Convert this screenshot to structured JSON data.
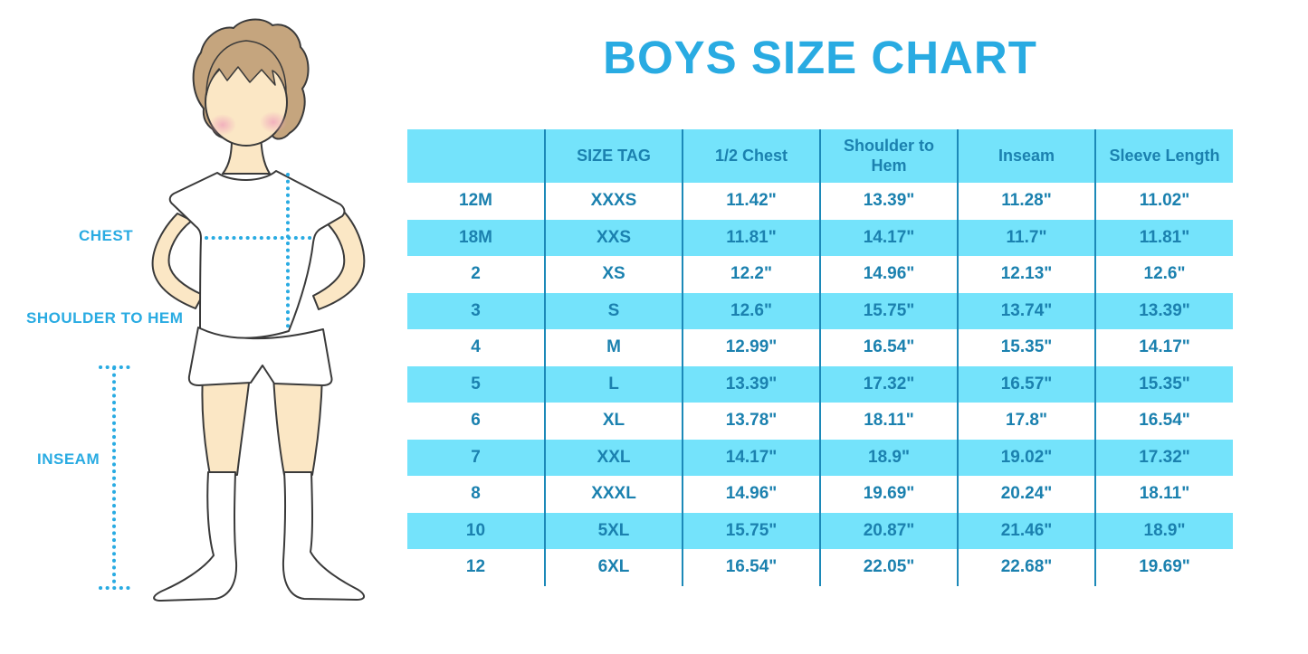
{
  "title": "BOYS SIZE CHART",
  "figure": {
    "description": "illustration of a boy in white t-shirt, shorts and knee socks with measurement guide lines",
    "labels": {
      "chest": "CHEST",
      "shoulder_to_hem": "SHOULDER TO HEM",
      "inseam": "INSEAM"
    }
  },
  "colors": {
    "accent_blue": "#29ABE2",
    "stripe_cyan": "#74E3FB",
    "table_text": "#1B81AF",
    "grid_line": "#1C89B8",
    "skin": "#FBE7C5",
    "hair": "#C5A57E",
    "blush": "#F0A8BC"
  },
  "chart_data": {
    "type": "table",
    "title": "BOYS SIZE CHART",
    "units": "inches",
    "layout": "header row cyan; data rows alternate white/cyan; dark cyan column separator lines",
    "columns": [
      "",
      "SIZE TAG",
      "1/2 Chest",
      "Shoulder to Hem",
      "Inseam",
      "Sleeve Length"
    ],
    "rows": [
      [
        "12M",
        "XXXS",
        "11.42\"",
        "13.39\"",
        "11.28\"",
        "11.02\""
      ],
      [
        "18M",
        "XXS",
        "11.81\"",
        "14.17\"",
        "11.7\"",
        "11.81\""
      ],
      [
        "2",
        "XS",
        "12.2\"",
        "14.96\"",
        "12.13\"",
        "12.6\""
      ],
      [
        "3",
        "S",
        "12.6\"",
        "15.75\"",
        "13.74\"",
        "13.39\""
      ],
      [
        "4",
        "M",
        "12.99\"",
        "16.54\"",
        "15.35\"",
        "14.17\""
      ],
      [
        "5",
        "L",
        "13.39\"",
        "17.32\"",
        "16.57\"",
        "15.35\""
      ],
      [
        "6",
        "XL",
        "13.78\"",
        "18.11\"",
        "17.8\"",
        "16.54\""
      ],
      [
        "7",
        "XXL",
        "14.17\"",
        "18.9\"",
        "19.02\"",
        "17.32\""
      ],
      [
        "8",
        "XXXL",
        "14.96\"",
        "19.69\"",
        "20.24\"",
        "18.11\""
      ],
      [
        "10",
        "5XL",
        "15.75\"",
        "20.87\"",
        "21.46\"",
        "18.9\""
      ],
      [
        "12",
        "6XL",
        "16.54\"",
        "22.05\"",
        "22.68\"",
        "19.69\""
      ]
    ]
  }
}
